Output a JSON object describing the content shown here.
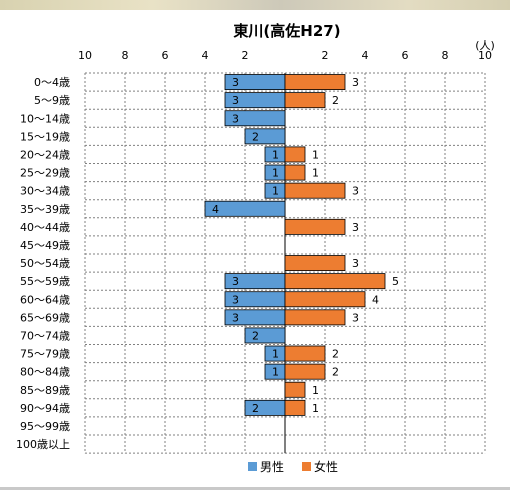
{
  "chart_data": {
    "type": "bar",
    "orientation": "horizontal-pyramid",
    "title": "東川(高佐H27)",
    "unit_label": "(人)",
    "x_ticks": [
      "10",
      "8",
      "6",
      "4",
      "2",
      "",
      "2",
      "4",
      "6",
      "8",
      "10"
    ],
    "xlim": [
      -10,
      10
    ],
    "grid": true,
    "legend_position": "bottom",
    "categories": [
      "0〜4歳",
      "5〜9歳",
      "10〜14歳",
      "15〜19歳",
      "20〜24歳",
      "25〜29歳",
      "30〜34歳",
      "35〜39歳",
      "40〜44歳",
      "45〜49歳",
      "50〜54歳",
      "55〜59歳",
      "60〜64歳",
      "65〜69歳",
      "70〜74歳",
      "75〜79歳",
      "80〜84歳",
      "85〜89歳",
      "90〜94歳",
      "95〜99歳",
      "100歳以上"
    ],
    "series": [
      {
        "name": "男性",
        "color": "#5b9bd5",
        "values": [
          3,
          3,
          3,
          2,
          1,
          1,
          1,
          4,
          0,
          0,
          0,
          3,
          3,
          3,
          2,
          1,
          1,
          0,
          2,
          0,
          0
        ]
      },
      {
        "name": "女性",
        "color": "#ed7d31",
        "values": [
          3,
          2,
          0,
          0,
          1,
          1,
          3,
          0,
          3,
          0,
          3,
          5,
          4,
          3,
          0,
          2,
          2,
          1,
          1,
          0,
          0
        ]
      }
    ]
  }
}
